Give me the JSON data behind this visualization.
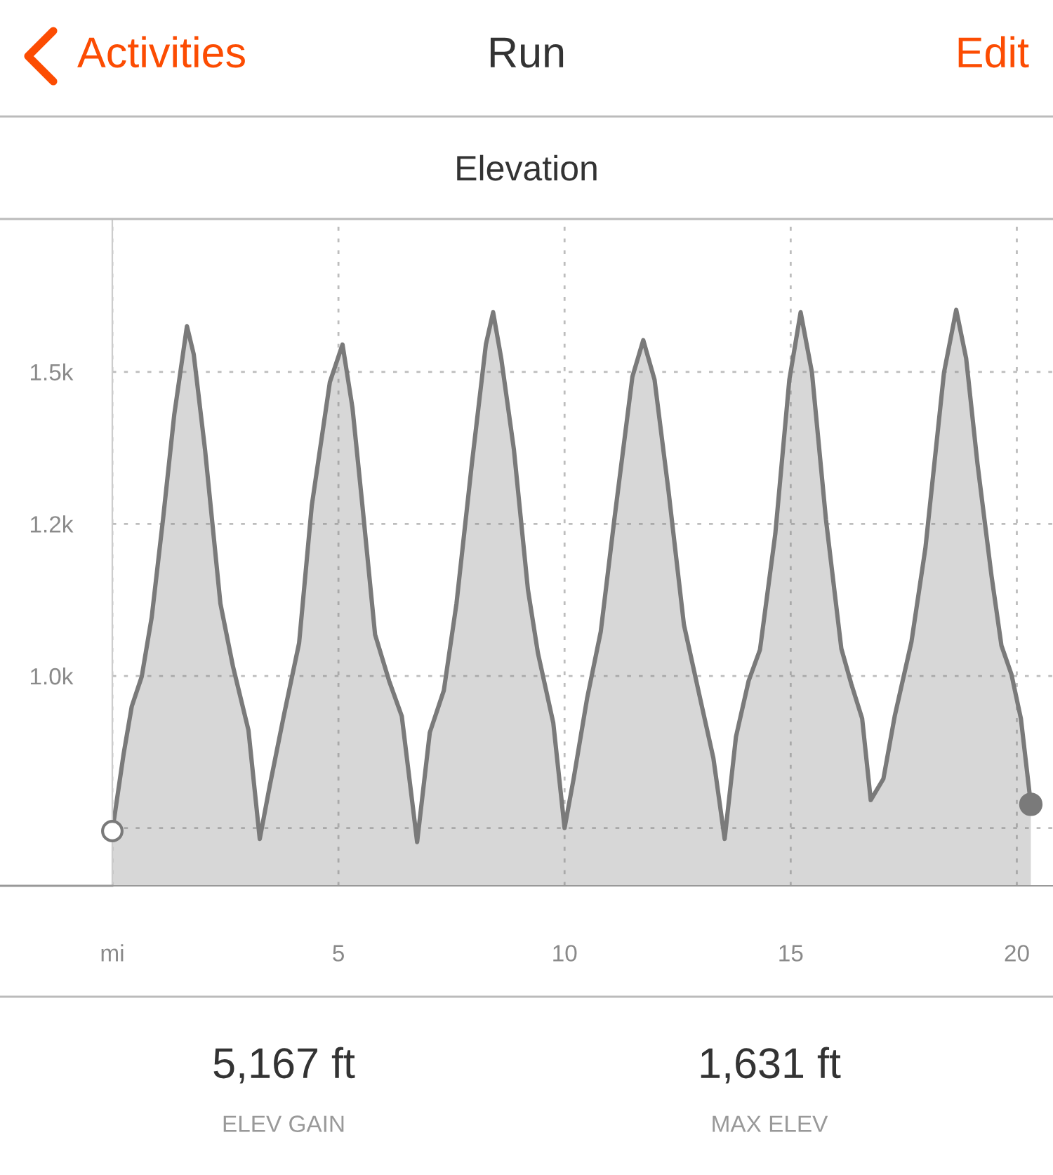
{
  "chart_data": {
    "type": "area",
    "title": "Elevation",
    "annotations": [
      "Activities",
      "Run",
      "Edit",
      "5,167 ft",
      "ELEV GAIN",
      "1,631 ft",
      "MAX ELEV"
    ],
    "x": [
      0,
      0.25,
      0.43,
      0.65,
      0.87,
      1.12,
      1.37,
      1.65,
      1.8,
      2.05,
      2.39,
      2.67,
      3.01,
      3.26,
      3.48,
      3.79,
      4.13,
      4.41,
      4.81,
      5.09,
      5.31,
      5.53,
      5.81,
      6.12,
      6.4,
      6.74,
      7.02,
      7.33,
      7.61,
      7.95,
      8.26,
      8.42,
      8.6,
      8.88,
      9.19,
      9.41,
      9.75,
      10.0,
      10.2,
      10.5,
      10.8,
      11.1,
      11.5,
      11.74,
      11.99,
      12.3,
      12.64,
      12.98,
      13.29,
      13.54,
      13.79,
      14.07,
      14.32,
      14.66,
      14.97,
      15.22,
      15.47,
      15.78,
      16.12,
      16.34,
      16.58,
      16.77,
      17.05,
      17.3,
      17.67,
      17.98,
      18.39,
      18.66,
      18.88,
      19.13,
      19.44,
      19.66,
      19.88,
      20.09,
      20.31
    ],
    "series": [
      {
        "color": "#7a7a7a",
        "values": [
          745,
          872,
          950,
          999,
          1096,
          1257,
          1430,
          1575,
          1529,
          1372,
          1119,
          1015,
          911,
          732,
          819,
          934,
          1054,
          1280,
          1483,
          1545,
          1441,
          1280,
          1068,
          992,
          934,
          727,
          907,
          976,
          1119,
          1349,
          1545,
          1598,
          1522,
          1372,
          1142,
          1038,
          923,
          750,
          831,
          964,
          1073,
          1257,
          1492,
          1552,
          1487,
          1303,
          1084,
          969,
          865,
          732,
          900,
          992,
          1043,
          1234,
          1487,
          1598,
          1499,
          1257,
          1045,
          987,
          930,
          796,
          831,
          934,
          1056,
          1211,
          1499,
          1602,
          1522,
          1349,
          1165,
          1050,
          1003,
          930,
          789
        ]
      }
    ],
    "xlim": [
      0,
      20.8
    ],
    "ylim": [
      655,
      1749
    ],
    "xticks": [
      {
        "value": 0,
        "label": "mi"
      },
      5,
      10,
      15,
      20
    ],
    "yticks": [
      {
        "value": 750,
        "label": null
      },
      {
        "value": 1000,
        "label": "1.0k"
      },
      {
        "value": 1250,
        "label": "1.2k"
      },
      {
        "value": 1500,
        "label": "1.5k"
      }
    ],
    "grid": true,
    "legend": false
  }
}
